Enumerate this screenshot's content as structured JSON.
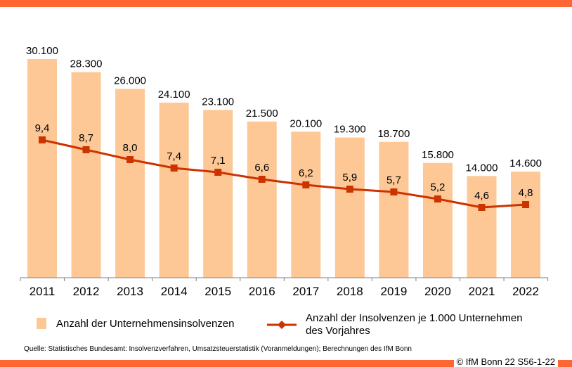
{
  "chart_data": {
    "type": "bar+line",
    "categories": [
      "2011",
      "2012",
      "2013",
      "2014",
      "2015",
      "2016",
      "2017",
      "2018",
      "2019",
      "2020",
      "2021",
      "2022"
    ],
    "series": [
      {
        "name": "Anzahl der Unternehmensinsolvenzen",
        "type": "bar",
        "values": [
          30100,
          28300,
          26000,
          24100,
          23100,
          21500,
          20100,
          19300,
          18700,
          15800,
          14000,
          14600
        ],
        "labels": [
          "30.100",
          "28.300",
          "26.000",
          "24.100",
          "23.100",
          "21.500",
          "20.100",
          "19.300",
          "18.700",
          "15.800",
          "14.000",
          "14.600"
        ],
        "color": "#fdc896"
      },
      {
        "name": "Anzahl der Insolvenzen  je 1.000 Unternehmen des Vorjahres",
        "type": "line",
        "values": [
          9.4,
          8.7,
          8.0,
          7.4,
          7.1,
          6.6,
          6.2,
          5.9,
          5.7,
          5.2,
          4.6,
          4.8
        ],
        "labels": [
          "9,4",
          "8,7",
          "8,0",
          "7,4",
          "7,1",
          "6,6",
          "6,2",
          "5,9",
          "5,7",
          "5,2",
          "4,6",
          "4,8"
        ],
        "color": "#cc3300"
      }
    ],
    "legend": {
      "bar": "Anzahl der Unternehmensinsolvenzen",
      "line1": "Anzahl der Insolvenzen  je 1.000 Unternehmen",
      "line2": "des Vorjahres"
    }
  },
  "source": "Quelle:  Statistisches Bundesamt: Insolvenzverfahren, Umsatzsteuerstatistik (Voranmeldungen); Berechnungen des IfM Bonn",
  "copyright": "© IfM  Bonn 22 S56-1-22",
  "colors": {
    "accent": "#ff6633"
  }
}
